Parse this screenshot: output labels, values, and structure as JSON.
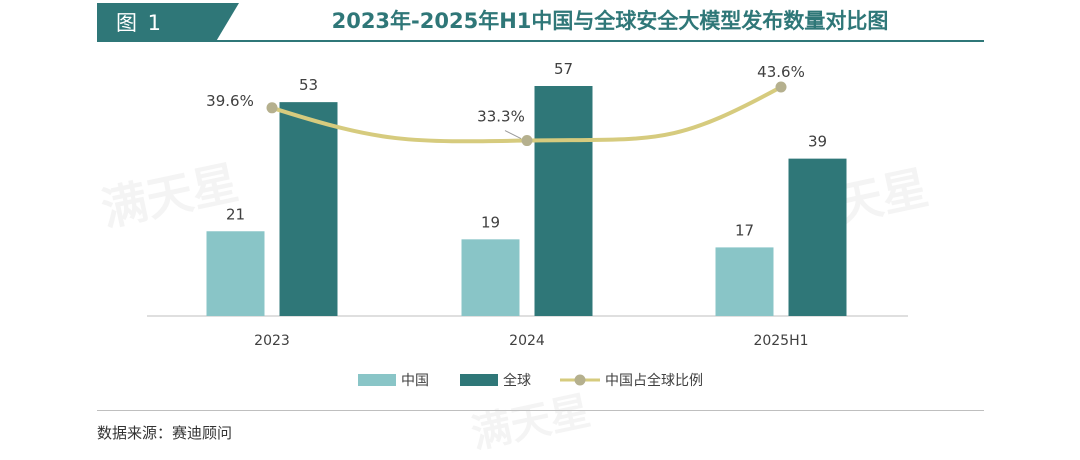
{
  "figure": {
    "tab_label": "图 1",
    "title": "2023年-2025年H1中国与全球安全大模型发布数量对比图"
  },
  "source_text": "数据来源：赛迪顾问",
  "watermark_text": "满天星",
  "colors": {
    "china": "#89c5c7",
    "global": "#2f7778",
    "ratio_line": "#d6cb7e",
    "ratio_point": "#b5b08e",
    "text": "#404040",
    "axis": "#bfbfbf"
  },
  "chart_data": {
    "type": "bar",
    "categories": [
      "2023",
      "2024",
      "2025H1"
    ],
    "series": [
      {
        "name": "中国",
        "type": "bar",
        "values": [
          21,
          19,
          17
        ],
        "labels": [
          "21",
          "19",
          "17"
        ],
        "color": "#89c5c7"
      },
      {
        "name": "全球",
        "type": "bar",
        "values": [
          53,
          57,
          39
        ],
        "labels": [
          "53",
          "57",
          "39"
        ],
        "color": "#2f7778"
      },
      {
        "name": "中国占全球比例",
        "type": "line",
        "values": [
          39.6,
          33.3,
          43.6
        ],
        "labels": [
          "39.6%",
          "33.3%",
          "43.6%"
        ],
        "color": "#d6cb7e",
        "smooth": true
      }
    ],
    "ylim": [
      0,
      60
    ],
    "ratio_ylim": [
      0,
      50
    ],
    "grid": false,
    "legend": "bottom"
  }
}
